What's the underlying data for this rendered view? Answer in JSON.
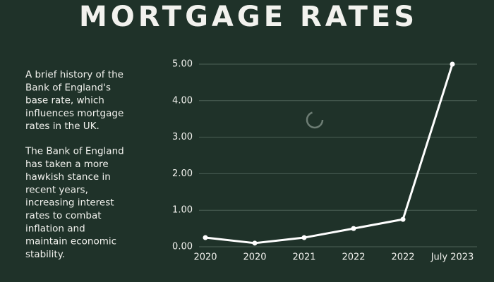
{
  "chart_data": {
    "type": "line",
    "title": "MORTGAGE RATES",
    "description": [
      [
        "A brief history of the",
        "Bank of England's",
        "base rate, which",
        "influences mortgage",
        "rates in the UK."
      ],
      [
        "The Bank of England",
        "has taken a more",
        "hawkish stance in",
        "recent years,",
        "increasing interest",
        "rates to combat",
        "inflation and",
        "maintain economic",
        "stability."
      ]
    ],
    "categories": [
      "2020",
      "2020",
      "2021",
      "2022",
      "2022",
      "July 2023"
    ],
    "values": [
      0.25,
      0.1,
      0.25,
      0.5,
      0.75,
      5.0
    ],
    "color": "#ffffff",
    "ylim": [
      0,
      5
    ],
    "yticks": [
      {
        "value": 0,
        "label": "0.00"
      },
      {
        "value": 1,
        "label": "1.00"
      },
      {
        "value": 2,
        "label": "2.00"
      },
      {
        "value": 3,
        "label": "3.00"
      },
      {
        "value": 4,
        "label": "4.00"
      },
      {
        "value": 5,
        "label": "5.00"
      }
    ],
    "grid": true
  }
}
